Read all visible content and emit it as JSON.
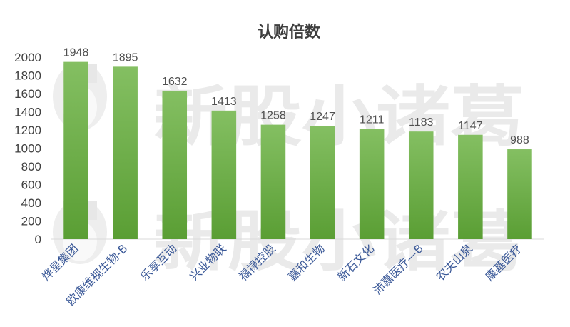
{
  "chart_data": {
    "type": "bar",
    "title": "认购倍数",
    "xlabel": "",
    "ylabel": "",
    "ylim": [
      0,
      2000
    ],
    "yticks": [
      0,
      200,
      400,
      600,
      800,
      1000,
      1200,
      1400,
      1600,
      1800,
      2000
    ],
    "grid": false,
    "legend": "none",
    "bar_color": "#72b04e",
    "categories": [
      "烨星集团",
      "欧康维视生物-B",
      "乐享互动",
      "兴业物联",
      "福禄控股",
      "嘉和生物",
      "新石文化",
      "沛嘉医疗—B",
      "农夫山泉",
      "康基医疗"
    ],
    "values": [
      1948,
      1895,
      1632,
      1413,
      1258,
      1247,
      1211,
      1183,
      1147,
      988
    ],
    "data_labels": [
      "1948",
      "1895",
      "1632",
      "1413",
      "1258",
      "1247",
      "1211",
      "1183",
      "1147",
      "988"
    ]
  },
  "watermark": {
    "text": "新股小诸葛",
    "icon": "cartoon-sage-face-icon"
  }
}
